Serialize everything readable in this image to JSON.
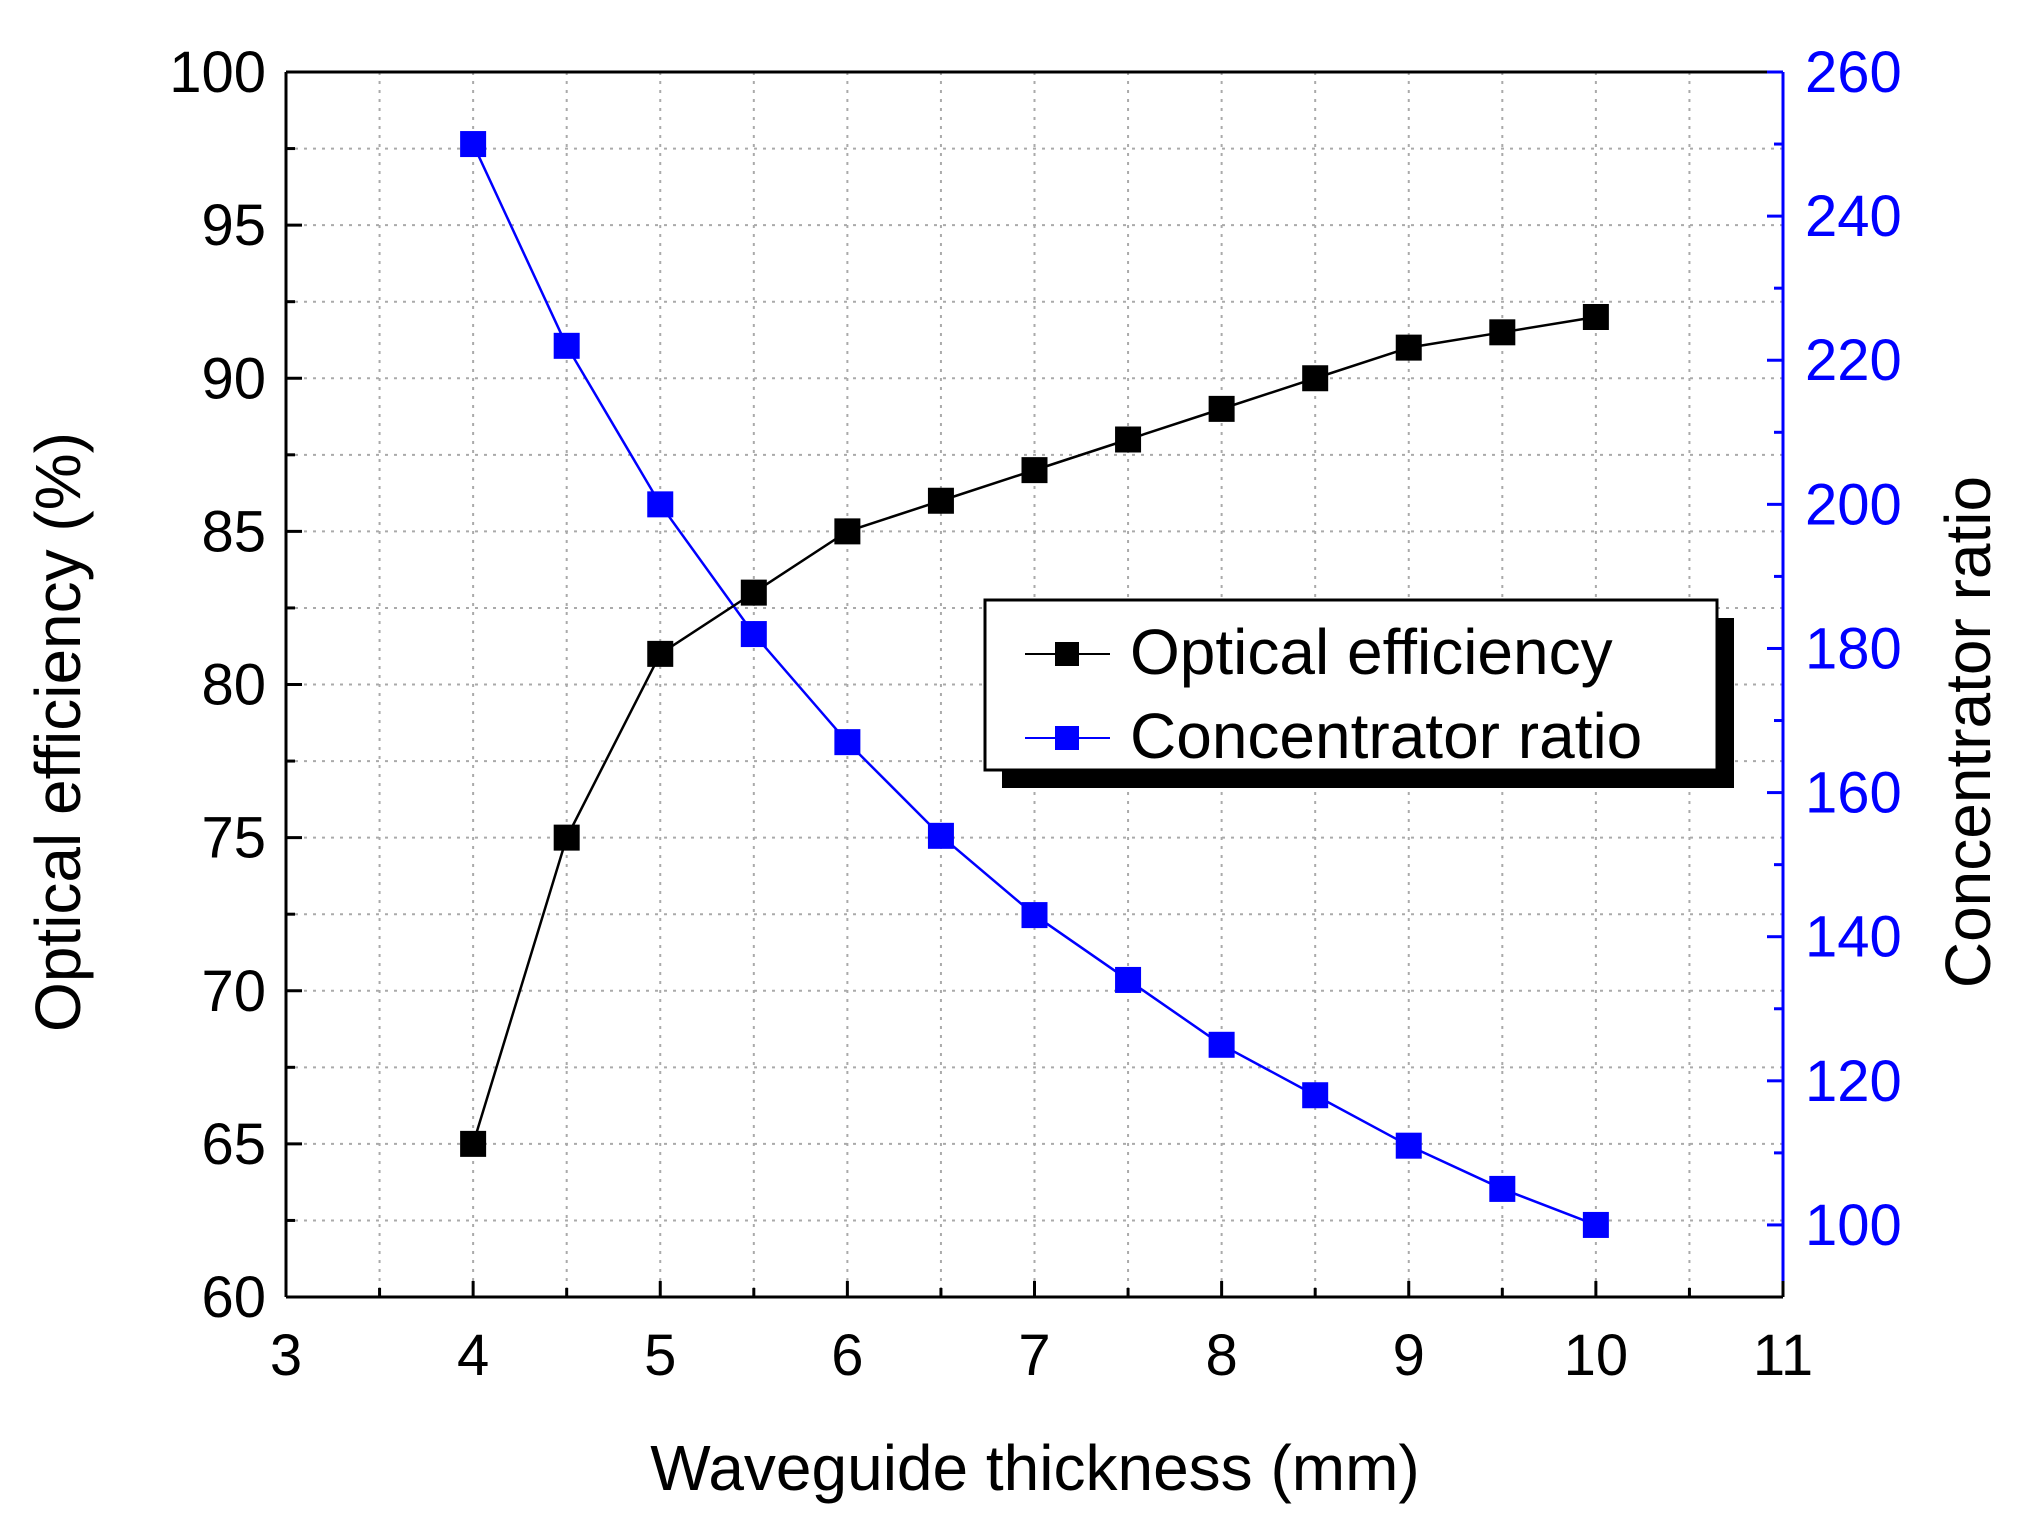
{
  "chart_data": {
    "type": "line",
    "x": [
      4,
      4.5,
      5,
      5.5,
      6,
      6.5,
      7,
      7.5,
      8,
      8.5,
      9,
      9.5,
      10
    ],
    "series": [
      {
        "name": "Optical efficiency",
        "axis": "left",
        "color": "#000000",
        "marker": "square",
        "values": [
          65,
          75,
          81,
          83,
          85,
          86,
          87,
          88,
          89,
          90,
          91,
          91.5,
          92
        ]
      },
      {
        "name": "Concentrator ratio",
        "axis": "right",
        "color": "#0000ff",
        "marker": "square",
        "values": [
          250,
          222,
          200,
          182,
          167,
          154,
          143,
          134,
          125,
          118,
          111,
          105,
          100
        ]
      }
    ],
    "xlabel": "Waveguide thickness (mm)",
    "ylabel": "Optical efficiency (%)",
    "ylabel_right": "Concentrator ratio",
    "xlim": [
      3,
      11
    ],
    "ylim": [
      60,
      100
    ],
    "ylim_right": [
      90,
      260
    ],
    "x_ticks": [
      "3",
      "4",
      "5",
      "6",
      "7",
      "8",
      "9",
      "10",
      "11"
    ],
    "y_ticks": [
      "60",
      "65",
      "70",
      "75",
      "80",
      "85",
      "90",
      "95",
      "100"
    ],
    "y_right_ticks": [
      "100",
      "120",
      "140",
      "160",
      "180",
      "200",
      "220",
      "240",
      "260"
    ],
    "grid": true,
    "legend_position": "center-right",
    "right_axis_color": "#0000ff"
  }
}
